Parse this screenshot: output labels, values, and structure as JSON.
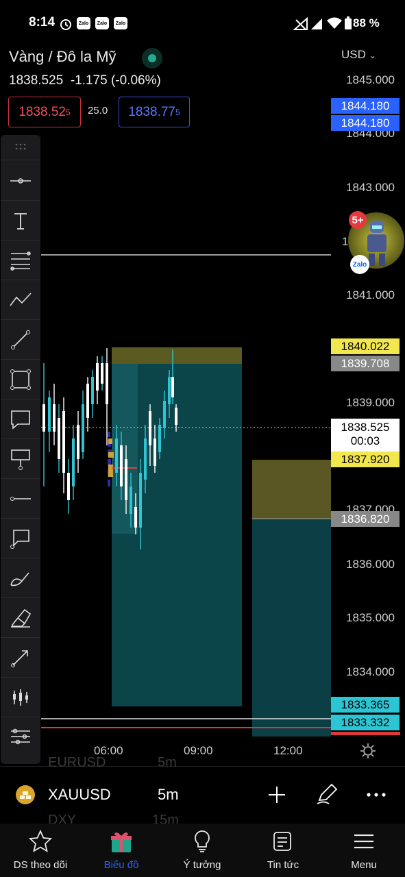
{
  "status": {
    "time": "8:14",
    "zalo": [
      "Zalo",
      "Zalo",
      "Zalo"
    ],
    "battery": "88 %"
  },
  "header": {
    "title": "Vàng / Đô la Mỹ",
    "currency": "USD",
    "last_price": "1838.525",
    "change": "-1.175 (-0.06%)",
    "bid_main": "1838.52",
    "bid_sup": "5",
    "spread": "25.0",
    "ask_main": "1838.77",
    "ask_sup": "5"
  },
  "axis": {
    "labels": [
      "1845.000",
      "1844.000",
      "1843.000",
      "1841.000",
      "1839.000",
      "1837.000",
      "1836.000",
      "1835.000",
      "1834.000"
    ],
    "partial_label": "1",
    "tags": {
      "blue1": "1844.180",
      "blue2": "1844.180",
      "yellow1": "1840.022",
      "gray1": "1839.708",
      "current": "1838.525",
      "countdown": "00:03",
      "yellow2": "1837.920",
      "gray2": "1836.820",
      "cyan1": "1833.365",
      "cyan2": "1833.332"
    }
  },
  "time_axis": [
    "06:00",
    "09:00",
    "12:00"
  ],
  "notification": {
    "count": "5+",
    "app": "Zalo"
  },
  "symbol_bar": {
    "symbol": "XAUUSD",
    "timeframe": "5m",
    "ghost_above": "EURUSD",
    "ghost_above_tf": "5m",
    "ghost_below": "DXY",
    "ghost_below_tf": "15m"
  },
  "bottom_nav": [
    {
      "label": "DS theo dõi",
      "icon": "star-icon"
    },
    {
      "label": "Biểu đồ",
      "icon": "gift-icon",
      "active": true
    },
    {
      "label": "Ý tưởng",
      "icon": "lightbulb-icon"
    },
    {
      "label": "Tin tức",
      "icon": "news-icon"
    },
    {
      "label": "Menu",
      "icon": "menu-icon"
    }
  ],
  "colors": {
    "accent_blue": "#2962ff",
    "teal_zone": "#0c4e55",
    "olive_zone": "#4d4a1c",
    "yellow_tag": "#f3e74e",
    "cyan_tag": "#2bc5d4"
  }
}
